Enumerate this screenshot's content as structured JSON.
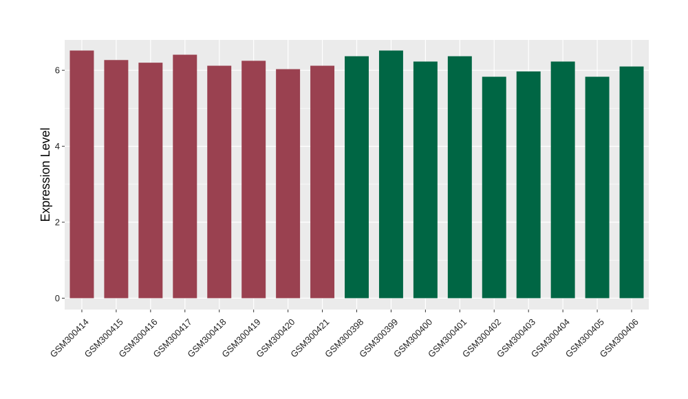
{
  "chart_data": {
    "type": "bar",
    "ylabel": "Expression Level",
    "xlabel": "",
    "title": "",
    "ylim": [
      -0.3,
      6.8
    ],
    "yticks": [
      0,
      2,
      4,
      6
    ],
    "grid": true,
    "panel_background": "#EBEBEB",
    "grid_color": "#FFFFFF",
    "categories": [
      "GSM300414",
      "GSM300415",
      "GSM300416",
      "GSM300417",
      "GSM300418",
      "GSM300419",
      "GSM300420",
      "GSM300421",
      "GSM300398",
      "GSM300399",
      "GSM300400",
      "GSM300401",
      "GSM300402",
      "GSM300403",
      "GSM300404",
      "GSM300405",
      "GSM300406"
    ],
    "values": [
      6.52,
      6.27,
      6.2,
      6.41,
      6.12,
      6.25,
      6.03,
      6.12,
      6.37,
      6.52,
      6.23,
      6.37,
      5.83,
      5.97,
      6.23,
      5.83,
      6.1
    ],
    "colors": [
      "#9A4150",
      "#9A4150",
      "#9A4150",
      "#9A4150",
      "#9A4150",
      "#9A4150",
      "#9A4150",
      "#9A4150",
      "#006644",
      "#006644",
      "#006644",
      "#006644",
      "#006644",
      "#006644",
      "#006644",
      "#006644",
      "#006644"
    ]
  }
}
